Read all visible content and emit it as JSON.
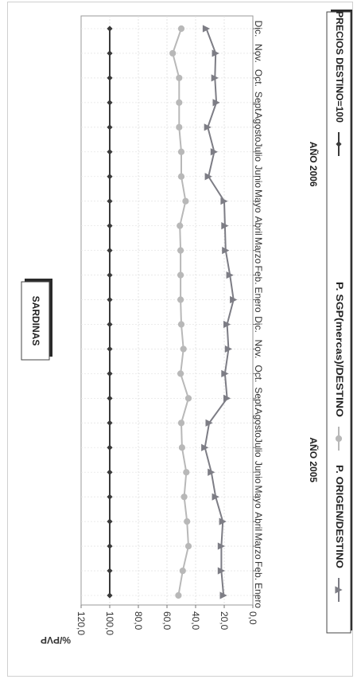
{
  "chart_data": {
    "type": "line",
    "title": "SARDINAS",
    "ylabel": "%/PVP",
    "ylim": [
      0,
      120
    ],
    "yticks": [
      "0,0",
      "20,0",
      "40,0",
      "60,0",
      "80,0",
      "100,0",
      "120,0"
    ],
    "grid": true,
    "legend_position": "right",
    "categories": [
      "Enero",
      "Feb.",
      "Marzo",
      "Abril",
      "Mayo",
      "Junio",
      "Julio",
      "Agosto",
      "Sept.",
      "Oct.",
      "Nov.",
      "Dic.",
      "Enero",
      "Feb.",
      "Marzo",
      "Abril",
      "Mayo",
      "Junio",
      "Julio",
      "Agosto",
      "Sept.",
      "Oct.",
      "Nov.",
      "Dic."
    ],
    "year_labels": [
      "AÑO 2005",
      "AÑO 2006"
    ],
    "series": [
      {
        "name": "P. ORIGEN/DESTINO",
        "color": "#7d7d85",
        "marker": "triangle",
        "values": [
          20.5,
          22,
          22,
          21,
          26,
          29,
          33.5,
          30.5,
          18,
          19.5,
          17,
          18,
          13.5,
          16,
          19,
          19.5,
          20,
          31,
          27,
          31.5,
          25.5,
          26.5,
          26,
          32.5
        ]
      },
      {
        "name": "P. SGP(mercas)/DESTINO",
        "color": "#b8b8b8",
        "marker": "circle",
        "values": [
          52,
          49,
          45,
          46,
          48,
          46.5,
          49.5,
          50,
          45,
          50.5,
          48.5,
          50,
          50.5,
          50.5,
          50.5,
          51,
          47,
          50,
          50,
          51.5,
          51.5,
          51.5,
          56,
          50
        ]
      },
      {
        "name": "PRECIOS DESTINO=100",
        "color": "#3a3a3a",
        "marker": "diamond",
        "values": [
          100,
          100,
          100,
          100,
          100,
          100,
          100,
          100,
          100,
          100,
          100,
          100,
          100,
          100,
          100,
          100,
          100,
          100,
          100,
          100,
          100,
          100,
          100,
          100
        ]
      }
    ]
  }
}
